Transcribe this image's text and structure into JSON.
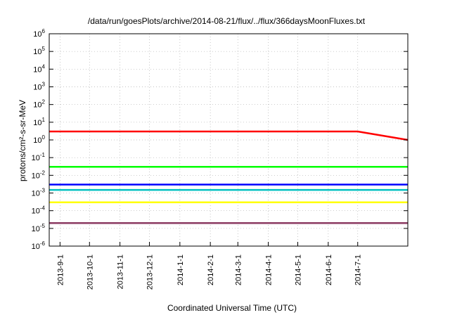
{
  "chart_data": {
    "type": "line",
    "title": "/data/run/goesPlots/archive/2014-08-21/flux/../flux/366daysMoonFluxes.txt",
    "xlabel": "Coordinated Universal Time (UTC)",
    "ylabel": "protons/cm²-s-sr-MeV",
    "y_scale": "log",
    "ylim": [
      1e-06,
      1000000.0
    ],
    "xlim": [
      "2013-08-21",
      "2014-08-21"
    ],
    "grid": true,
    "legend": "none",
    "y_ticks": [
      {
        "base": "10",
        "exp": "-6"
      },
      {
        "base": "10",
        "exp": "-5"
      },
      {
        "base": "10",
        "exp": "-4"
      },
      {
        "base": "10",
        "exp": "-3"
      },
      {
        "base": "10",
        "exp": "-2"
      },
      {
        "base": "10",
        "exp": "-1"
      },
      {
        "base": "10",
        "exp": "0"
      },
      {
        "base": "10",
        "exp": "1"
      },
      {
        "base": "10",
        "exp": "2"
      },
      {
        "base": "10",
        "exp": "3"
      },
      {
        "base": "10",
        "exp": "4"
      },
      {
        "base": "10",
        "exp": "5"
      },
      {
        "base": "10",
        "exp": "6"
      }
    ],
    "x_ticks": [
      {
        "label": "2013-9-1",
        "date": "2013-09-01"
      },
      {
        "label": "2013-10-1",
        "date": "2013-10-01"
      },
      {
        "label": "2013-11-1",
        "date": "2013-11-01"
      },
      {
        "label": "2013-12-1",
        "date": "2013-12-01"
      },
      {
        "label": "2014-1-1",
        "date": "2014-01-01"
      },
      {
        "label": "2014-2-1",
        "date": "2014-02-01"
      },
      {
        "label": "2014-3-1",
        "date": "2014-03-01"
      },
      {
        "label": "2014-4-1",
        "date": "2014-04-01"
      },
      {
        "label": "2014-5-1",
        "date": "2014-05-01"
      },
      {
        "label": "2014-6-1",
        "date": "2014-06-01"
      },
      {
        "label": "2014-7-1",
        "date": "2014-07-01"
      }
    ],
    "series": [
      {
        "color": "#8b3a62",
        "x": [
          "2013-08-21",
          "2013-10-01",
          "2013-12-01",
          "2014-01-01",
          "2014-01-19",
          "2014-02-24",
          "2014-04-01",
          "2014-05-20",
          "2014-07-01",
          "2014-08-21"
        ],
        "values": [
          2e-05,
          2e-05,
          2e-05,
          2e-05,
          2e-05,
          2e-05,
          2e-05,
          2e-05,
          2e-05,
          2e-05
        ]
      },
      {
        "color": "#ffff00",
        "x": [
          "2013-08-21",
          "2013-10-01",
          "2013-12-01",
          "2014-01-01",
          "2014-01-19",
          "2014-02-24",
          "2014-04-01",
          "2014-05-20",
          "2014-07-01",
          "2014-08-21"
        ],
        "values": [
          0.0003,
          0.0003,
          0.0003,
          0.0003,
          0.0003,
          0.0003,
          0.0003,
          0.0003,
          0.0003,
          0.0003
        ]
      },
      {
        "color": "#00c0c0",
        "x": [
          "2013-08-21",
          "2013-10-01",
          "2013-12-01",
          "2014-01-01",
          "2014-01-19",
          "2014-02-24",
          "2014-04-01",
          "2014-05-20",
          "2014-07-01",
          "2014-08-21"
        ],
        "values": [
          0.0015,
          0.0015,
          0.0015,
          0.0015,
          0.0015,
          0.0015,
          0.0015,
          0.0015,
          0.0015,
          0.0015
        ]
      },
      {
        "color": "#0000ff",
        "x": [
          "2013-08-21",
          "2013-10-01",
          "2013-12-01",
          "2014-01-01",
          "2014-01-19",
          "2014-02-24",
          "2014-04-01",
          "2014-05-20",
          "2014-07-01",
          "2014-08-21"
        ],
        "values": [
          0.003,
          0.003,
          0.003,
          0.003,
          0.003,
          0.003,
          0.003,
          0.003,
          0.003,
          0.003
        ]
      },
      {
        "color": "#00ff00",
        "x": [
          "2013-08-21",
          "2013-10-01",
          "2013-12-01",
          "2014-01-01",
          "2014-01-19",
          "2014-02-24",
          "2014-04-01",
          "2014-05-20",
          "2014-07-01",
          "2014-08-21"
        ],
        "values": [
          0.03,
          0.03,
          0.03,
          0.03,
          0.03,
          0.03,
          0.03,
          0.03,
          0.03,
          0.03
        ]
      },
      {
        "color": "#ff0000",
        "x": [
          "2013-08-21",
          "2013-10-01",
          "2013-12-01",
          "2014-01-01",
          "2014-01-19",
          "2014-02-24",
          "2014-04-01",
          "2014-05-20",
          "2014-07-01",
          "2014-08-21"
        ],
        "values": [
          3,
          3,
          3,
          3,
          3,
          3,
          3,
          3,
          3,
          1
        ]
      }
    ]
  }
}
